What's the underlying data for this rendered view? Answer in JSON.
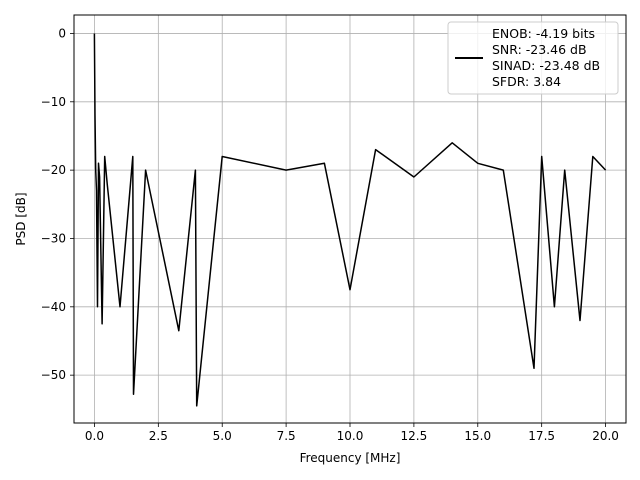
{
  "chart_data": {
    "type": "line",
    "title": "",
    "xlabel": "Frequency [MHz]",
    "ylabel": "PSD [dB]",
    "xlim": [
      -0.8,
      20.8
    ],
    "ylim": [
      -57,
      2.7
    ],
    "x_ticks": [
      0.0,
      2.5,
      5.0,
      7.5,
      10.0,
      12.5,
      15.0,
      17.5,
      20.0
    ],
    "x_tick_labels": [
      "0.0",
      "2.5",
      "5.0",
      "7.5",
      "10.0",
      "12.5",
      "15.0",
      "17.5",
      "20.0"
    ],
    "y_ticks": [
      0,
      -10,
      -20,
      -30,
      -40,
      -50
    ],
    "y_tick_labels": [
      "0",
      "−10",
      "−20",
      "−30",
      "−40",
      "−50"
    ],
    "grid": true,
    "legend_position": "upper right",
    "legend": [
      "ENOB: -4.19 bits",
      "SNR: -23.46 dB",
      "SINAD: -23.48 dB",
      "SFDR: 3.84"
    ],
    "series": [
      {
        "color": "#000000",
        "x": [
          0.0,
          0.02,
          0.05,
          0.08,
          0.12,
          0.16,
          0.2,
          0.3,
          0.4,
          0.5,
          1.0,
          1.5,
          1.53,
          2.0,
          3.3,
          3.95,
          4.0,
          5.0,
          7.5,
          9.0,
          10.0,
          11.0,
          12.5,
          14.0,
          15.0,
          16.0,
          17.2,
          17.5,
          18.0,
          18.4,
          19.0,
          19.5,
          20.0
        ],
        "y": [
          0.0,
          -12.0,
          -20.0,
          -23.0,
          -40.0,
          -19.0,
          -21.0,
          -42.5,
          -18.0,
          -22.0,
          -40.0,
          -18.0,
          -52.8,
          -20.0,
          -43.5,
          -20.0,
          -54.5,
          -18.0,
          -20.0,
          -19.0,
          -37.5,
          -17.0,
          -21.0,
          -16.0,
          -19.0,
          -20.0,
          -49.0,
          -18.0,
          -40.0,
          -20.0,
          -42.0,
          -18.0,
          -20.0
        ]
      }
    ]
  }
}
